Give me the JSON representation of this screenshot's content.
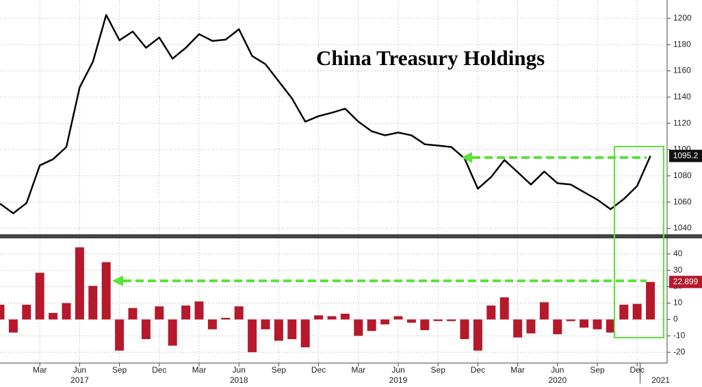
{
  "chart_data": [
    {
      "type": "line",
      "title": "China Treasury Holdings",
      "color": "#000000",
      "values": [
        1058.8,
        1051.5,
        1059.3,
        1088,
        1092.7,
        1102,
        1147.4,
        1167,
        1202.6,
        1183.3,
        1190,
        1177.6,
        1185.4,
        1169.3,
        1177.6,
        1188,
        1182.8,
        1183.8,
        1191.7,
        1171.3,
        1165.1,
        1152,
        1139,
        1121.3,
        1125.5,
        1128.1,
        1131.2,
        1121.3,
        1114,
        1110.9,
        1113,
        1110.9,
        1104.1,
        1103.1,
        1102,
        1093.2,
        1070.2,
        1079.1,
        1092.1,
        1082.8,
        1073.4,
        1083.3,
        1074.4,
        1073.4,
        1067.6,
        1061.9,
        1054.6,
        1062.4,
        1072.3,
        1095.2
      ],
      "ylim": [
        1035,
        1214
      ],
      "yticks": [
        1040,
        1060,
        1080,
        1100,
        1120,
        1140,
        1160,
        1180,
        1200
      ],
      "grid": true
    },
    {
      "type": "bar",
      "color": "#b5192b",
      "categories": [
        null,
        null,
        null,
        "Mar",
        null,
        null,
        "Jun",
        null,
        null,
        "Sep",
        null,
        null,
        "Dec",
        null,
        null,
        "Mar",
        null,
        null,
        "Jun",
        null,
        null,
        "Sep",
        null,
        null,
        "Dec",
        null,
        null,
        "Mar",
        null,
        null,
        "Jun",
        null,
        null,
        "Sep",
        null,
        null,
        "Dec",
        null,
        null,
        "Mar",
        null,
        null,
        "Jun",
        null,
        null,
        "Sep",
        null,
        null,
        "Dec",
        null
      ],
      "years": [
        "2017",
        "2018",
        "2019",
        "2020",
        "2021"
      ],
      "values": [
        9,
        -8,
        9,
        28.5,
        4,
        10,
        44,
        20.5,
        35,
        -19,
        7,
        -12,
        8,
        -16,
        8.5,
        11,
        -6,
        1,
        8,
        -20,
        -6,
        -13,
        -12,
        -17,
        2.5,
        2,
        3.5,
        -10,
        -7,
        -3,
        2,
        -2,
        -6.5,
        -1,
        -1,
        -12,
        -19,
        8.5,
        13.5,
        -11,
        -8.5,
        10.5,
        -9,
        -1,
        -5,
        -6,
        -8,
        9,
        9.5,
        22.899
      ],
      "ylim": [
        -24.5,
        49.5
      ],
      "yticks": [
        -20,
        -10,
        0,
        10,
        20,
        30,
        40
      ],
      "grid": true
    }
  ]
}
